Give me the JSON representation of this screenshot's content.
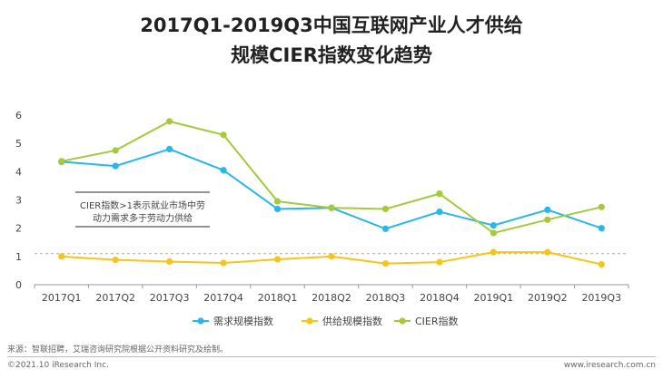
{
  "title_line1": "2017Q1-2019Q3中国互联网产业人才供给",
  "title_line2": "规模CIER指数变化趋势",
  "annotation_line1": "CIER指数>1表示就业市场中劳",
  "annotation_line2": "动力需求多于劳动力供给",
  "source": "来源：智联招聘，艾瑞咨询研究院根据公开资料研究及绘制。",
  "copyright": "©2021.10 iResearch Inc.",
  "website": "www.iresearch.com.cn",
  "chart_data": {
    "type": "line",
    "categories": [
      "2017Q1",
      "2017Q2",
      "2017Q3",
      "2017Q4",
      "2018Q1",
      "2018Q2",
      "2018Q3",
      "2018Q4",
      "2019Q1",
      "2019Q2",
      "2019Q3"
    ],
    "ylim": [
      0,
      6
    ],
    "yticks": [
      0,
      1,
      2,
      3,
      4,
      5,
      6
    ],
    "reference_line": 1.1,
    "legend_position": "bottom",
    "grid": false,
    "series": [
      {
        "name": "需求规模指数",
        "color": "#29b6e8",
        "values": [
          4.35,
          4.2,
          4.8,
          4.05,
          2.68,
          2.72,
          1.98,
          2.58,
          2.1,
          2.65,
          2.0
        ]
      },
      {
        "name": "供给规模指数",
        "color": "#f5c518",
        "values": [
          1.0,
          0.88,
          0.82,
          0.77,
          0.9,
          1.0,
          0.75,
          0.8,
          1.15,
          1.15,
          0.72
        ]
      },
      {
        "name": "CIER指数",
        "color": "#a5c93b",
        "values": [
          4.37,
          4.75,
          5.78,
          5.3,
          2.95,
          2.72,
          2.68,
          3.22,
          1.83,
          2.3,
          2.75
        ]
      }
    ]
  }
}
